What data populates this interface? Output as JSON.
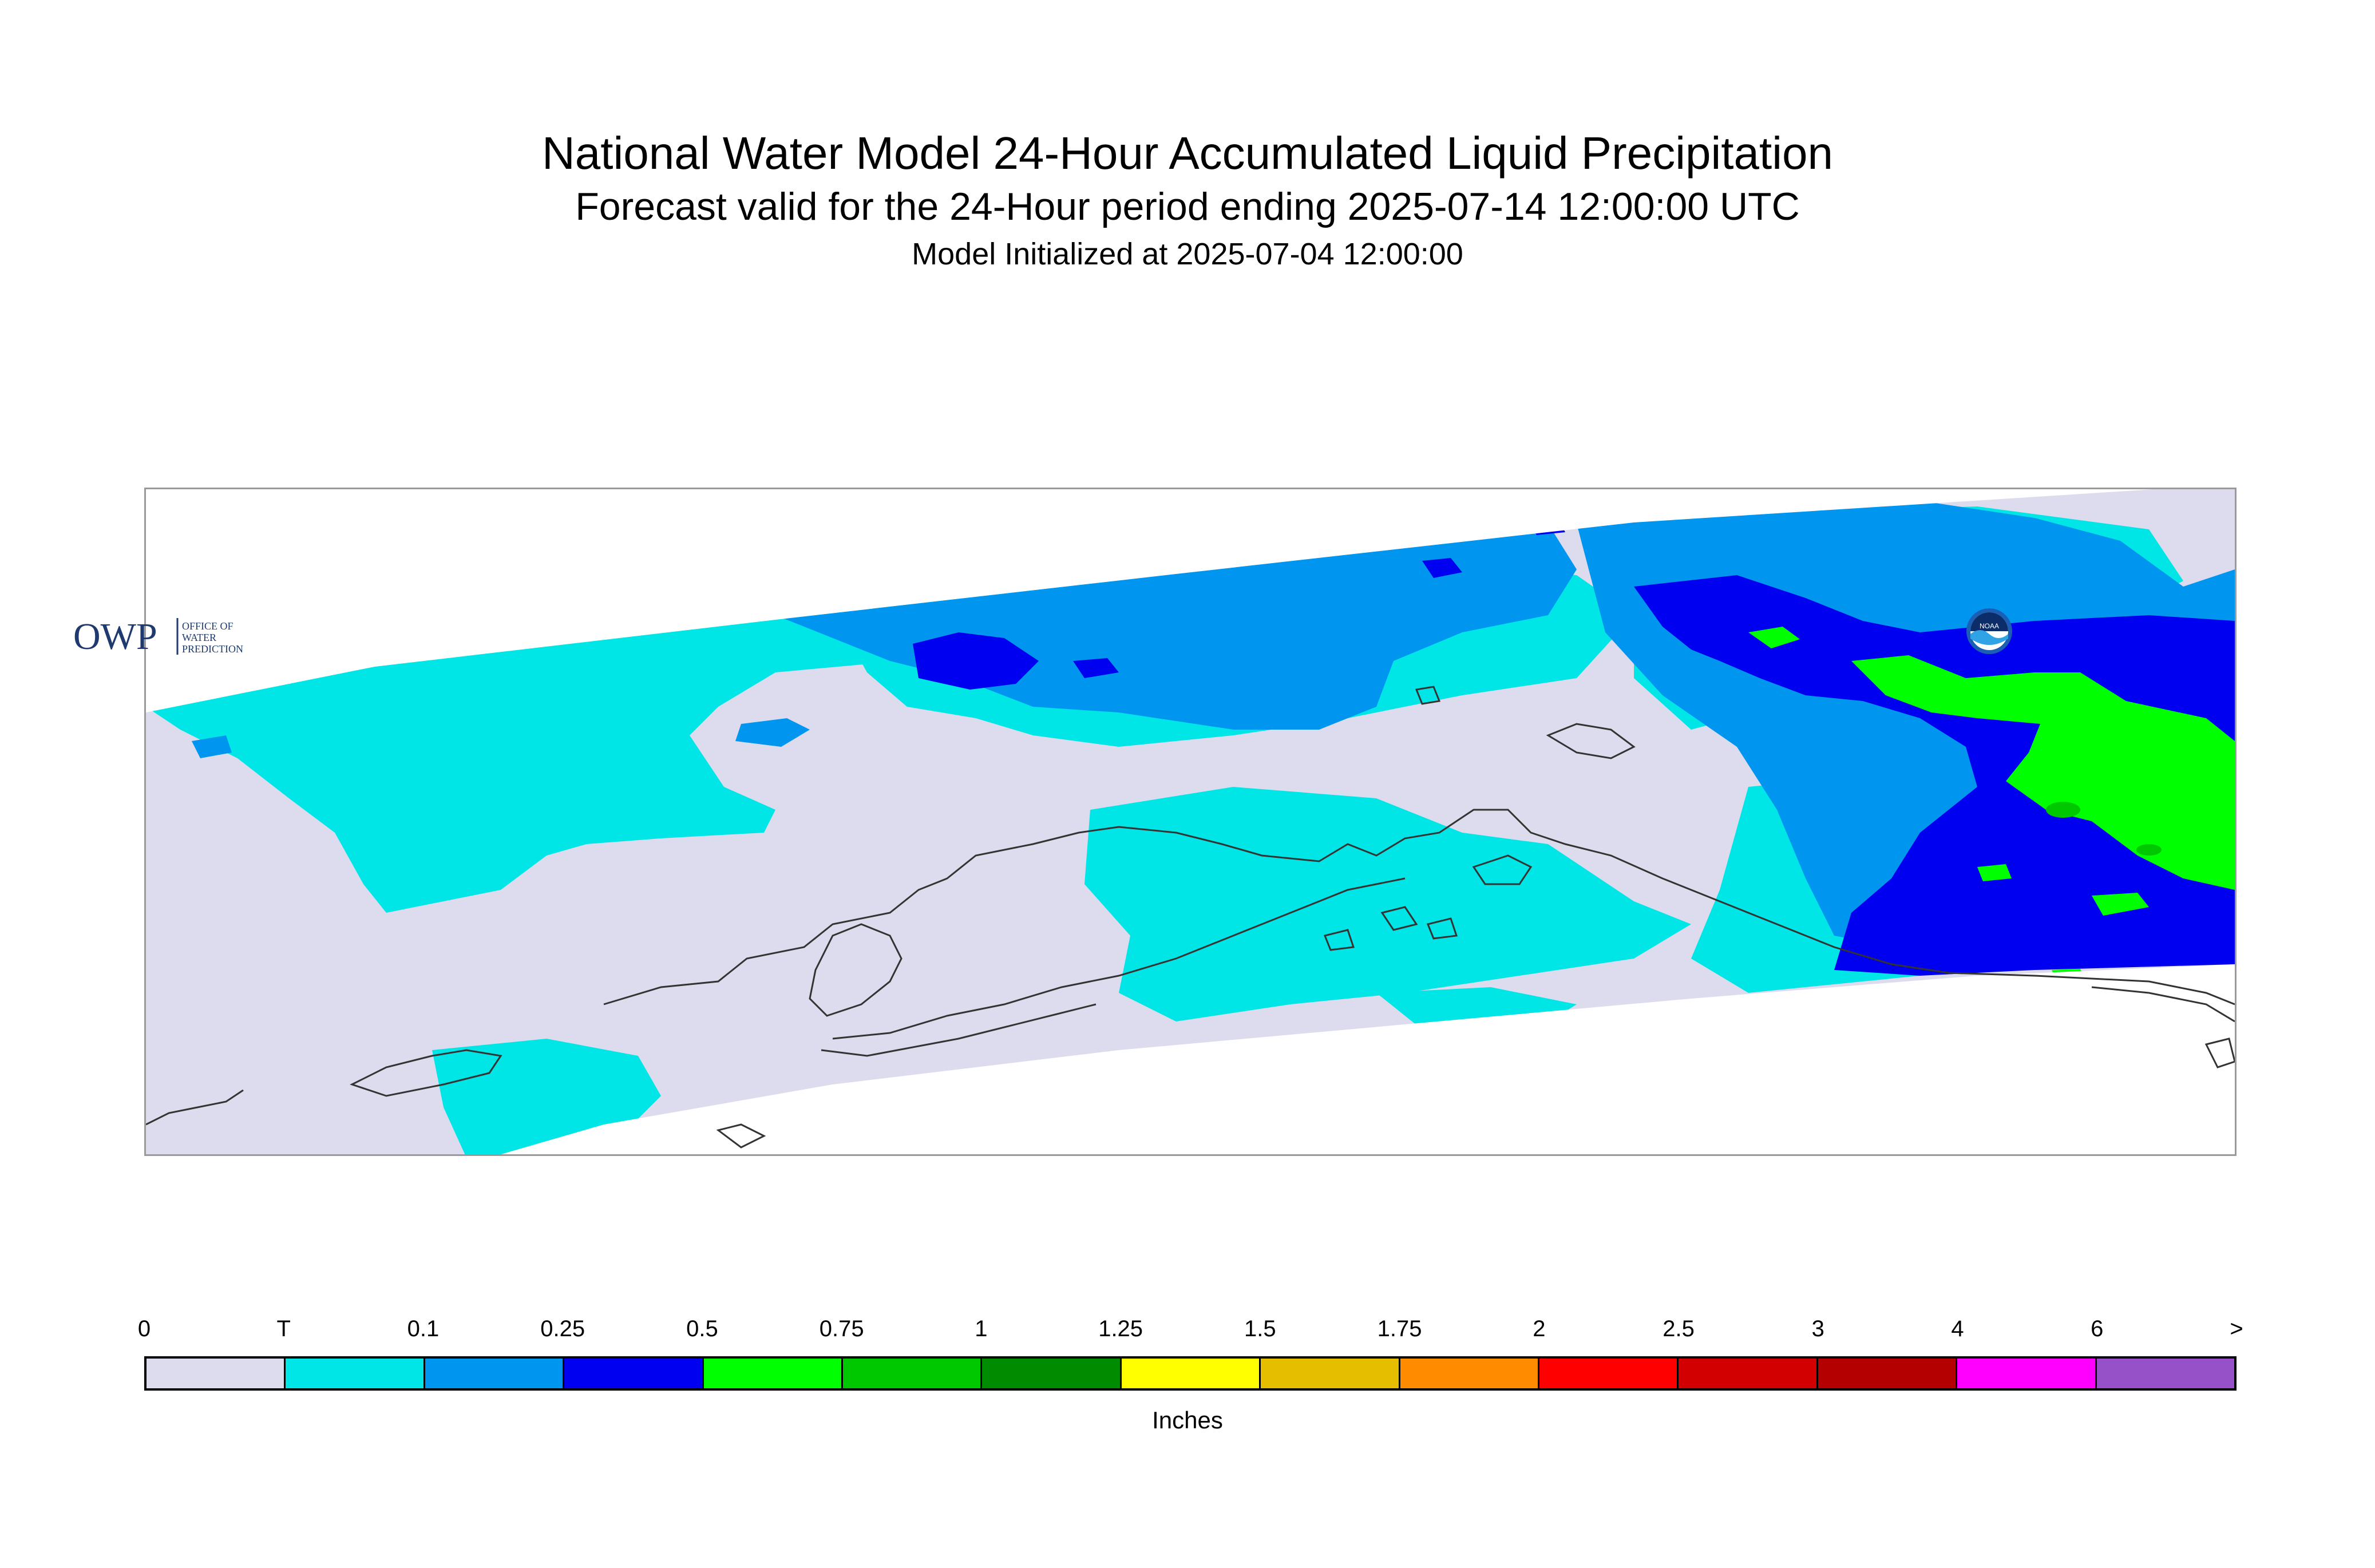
{
  "title": "National Water Model 24-Hour Accumulated Liquid Precipitation",
  "subtitle": "Forecast valid for the 24-Hour period ending 2025-07-14 12:00:00 UTC",
  "initialized": "Model Initialized at 2025-07-04 12:00:00",
  "logos": {
    "owp_text": "OWP",
    "owp_small_text": [
      "OFFICE OF",
      "WATER",
      "PREDICTION"
    ],
    "noaa_text": "NOAA"
  },
  "colors": {
    "zero": "#dcdcee",
    "trace": "#00e6e6",
    "p0_1": "#0096f0",
    "p0_25": "#0000f0",
    "p0_5": "#00ff00",
    "p0_75": "#00c800",
    "coastline": "#333333"
  },
  "legend": {
    "tick_labels": [
      "0",
      "T",
      "0.1",
      "0.25",
      "0.5",
      "0.75",
      "1",
      "1.25",
      "1.5",
      "1.75",
      "2",
      "2.5",
      "3",
      "4",
      "6",
      ">"
    ],
    "colors": [
      "#dcdcee",
      "#00e6e6",
      "#0096f0",
      "#0000f0",
      "#00ff00",
      "#00c800",
      "#008c00",
      "#ffff00",
      "#e6be00",
      "#ff8c00",
      "#ff0000",
      "#d20000",
      "#b40000",
      "#ff00ff",
      "#9650c8"
    ],
    "units": "Inches"
  }
}
